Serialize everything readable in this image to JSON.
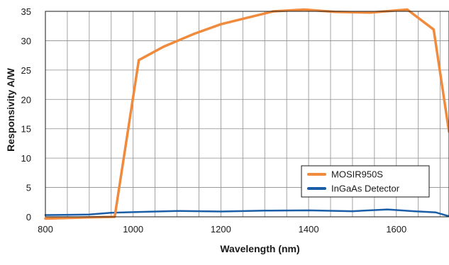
{
  "chart_data": {
    "type": "line",
    "title": "",
    "xlabel": "Wavelength (nm)",
    "ylabel": "Responsivity A/W",
    "xlim": [
      800,
      1720
    ],
    "ylim": [
      0,
      35
    ],
    "x_ticks": [
      800,
      1000,
      1200,
      1400,
      1600
    ],
    "y_ticks": [
      0,
      5,
      10,
      15,
      20,
      25,
      30,
      35
    ],
    "grid": true,
    "legend_position": "right",
    "series": [
      {
        "name": "MOSIR950S",
        "color": "#f08a3c",
        "x": [
          800,
          900,
          958,
          1013,
          1070,
          1140,
          1200,
          1260,
          1320,
          1390,
          1460,
          1540,
          1625,
          1685,
          1720
        ],
        "y": [
          -0.3,
          -0.1,
          0.0,
          26.7,
          29.0,
          31.2,
          32.8,
          33.9,
          35.0,
          35.3,
          34.9,
          34.8,
          35.3,
          31.9,
          14.5
        ]
      },
      {
        "name": "InGaAs Detector",
        "color": "#1a5ea8",
        "x": [
          800,
          860,
          900,
          950,
          1000,
          1100,
          1200,
          1300,
          1400,
          1500,
          1580,
          1640,
          1690,
          1720
        ],
        "y": [
          0.3,
          0.35,
          0.4,
          0.7,
          0.8,
          1.0,
          0.9,
          1.05,
          1.1,
          0.95,
          1.25,
          0.95,
          0.75,
          0.1
        ]
      }
    ]
  }
}
